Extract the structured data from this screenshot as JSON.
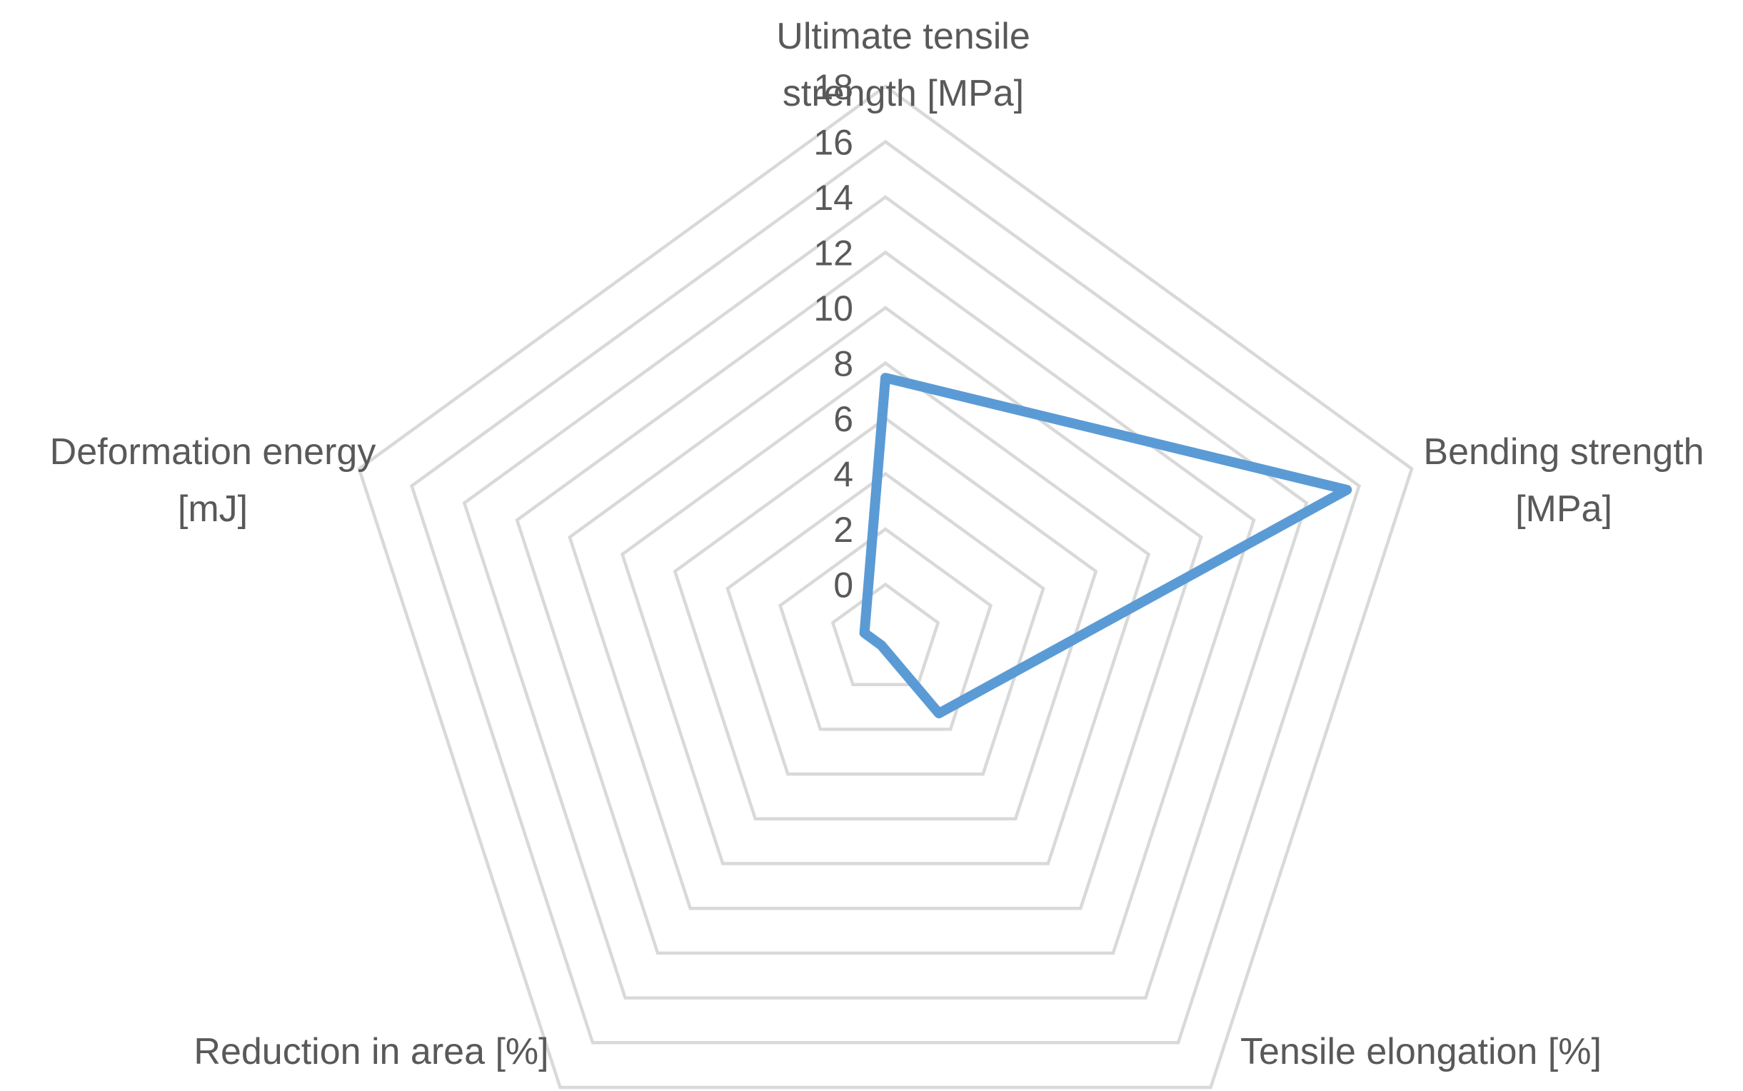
{
  "chart_data": {
    "type": "radar",
    "categories": [
      [
        "Ultimate tensile",
        "strength [MPa]"
      ],
      [
        "Bending strength",
        "[MPa]"
      ],
      [
        "Tensile elongation [%]"
      ],
      [
        "Reduction in area [%]"
      ],
      [
        "Deformation energy",
        "[mJ]"
      ]
    ],
    "ticks": [
      "0",
      "2",
      "4",
      "6",
      "8",
      "10",
      "12",
      "14",
      "16",
      "18"
    ],
    "rlim": [
      0,
      18
    ],
    "grid": true,
    "legend": "none",
    "series": [
      {
        "values": [
          9.5,
          17.6,
          3.3,
          0.25,
          0.8
        ],
        "color": "#5b9bd5"
      }
    ]
  }
}
